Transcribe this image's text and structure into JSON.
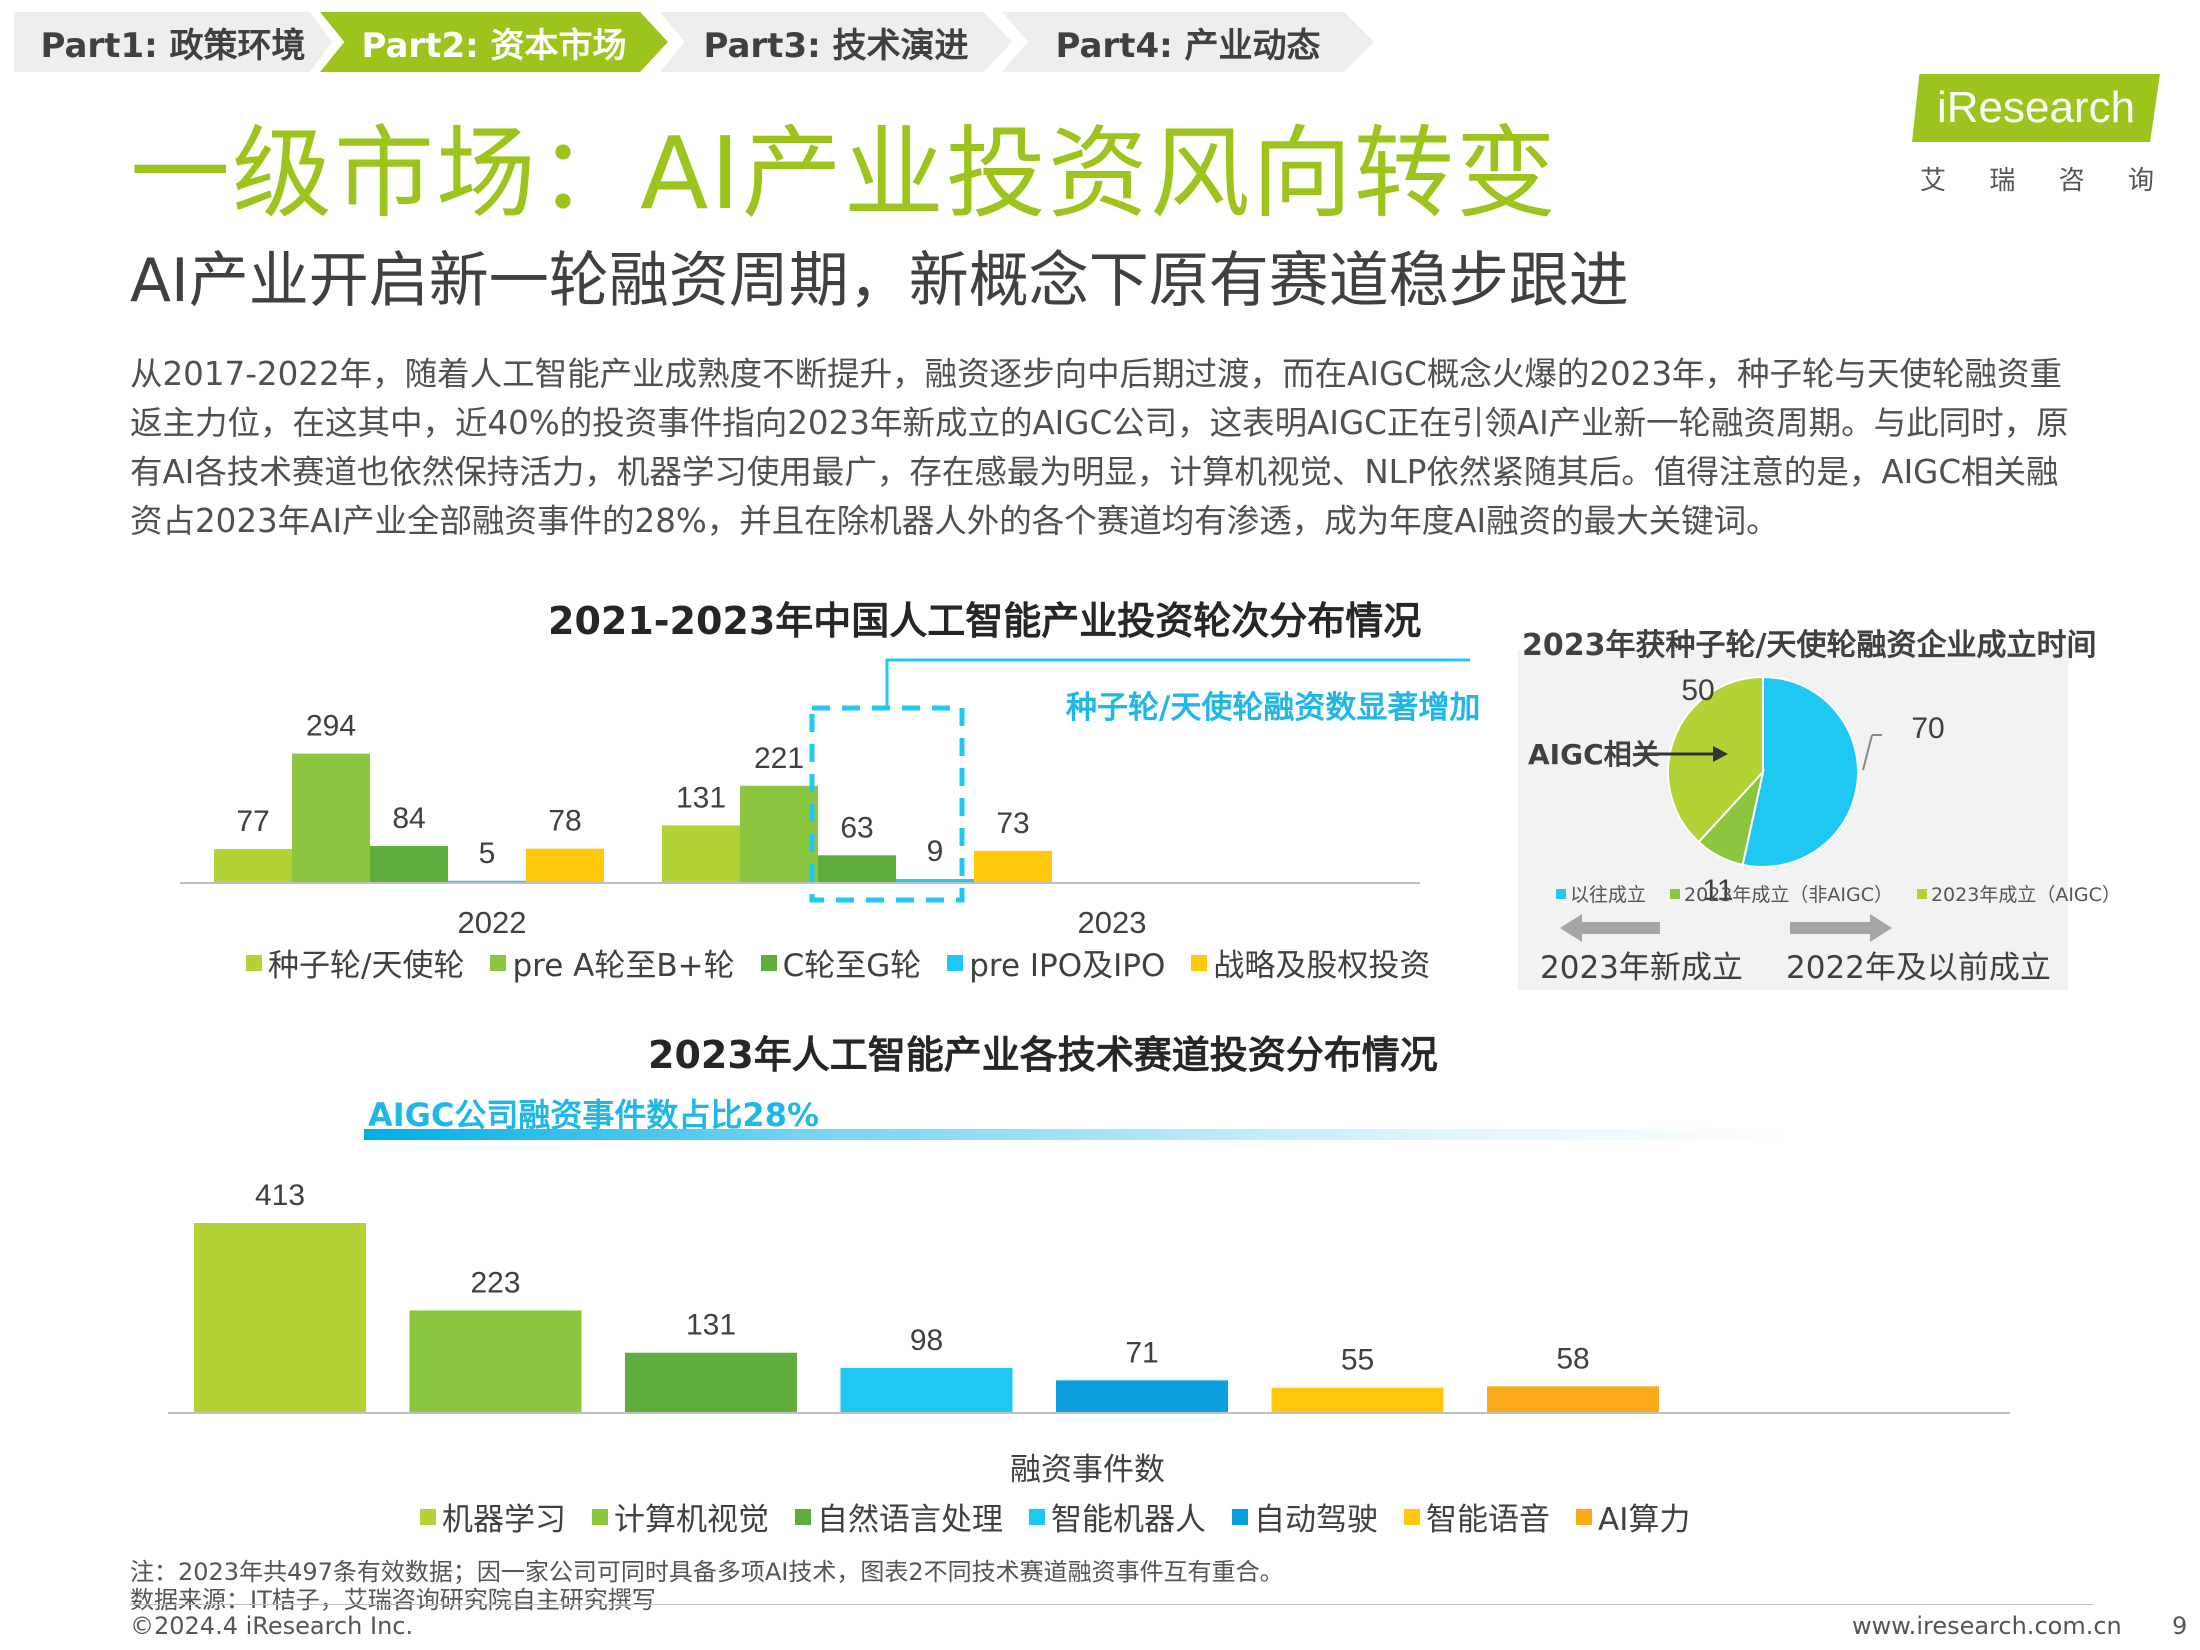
{
  "nav": {
    "tabs": [
      {
        "label": "Part1: 政策环境"
      },
      {
        "label": "Part2: 资本市场"
      },
      {
        "label": "Part3: 技术演进"
      },
      {
        "label": "Part4: 产业动态"
      }
    ],
    "active_index": 1
  },
  "logo": {
    "brand": "iResearch",
    "chinese": [
      "艾",
      "瑞",
      "咨",
      "询"
    ]
  },
  "header": {
    "title": "一级市场：AI产业投资风向转变",
    "subtitle": "AI产业开启新一轮融资周期，新概念下原有赛道稳步跟进"
  },
  "paragraph": "从2017-2022年，随着人工智能产业成熟度不断提升，融资逐步向中后期过渡，而在AIGC概念火爆的2023年，种子轮与天使轮融资重返主力位，在这其中，近40%的投资事件指向2023年新成立的AIGC公司，这表明AIGC正在引领AI产业新一轮融资周期。与此同时，原有AI各技术赛道也依然保持活力，机器学习使用最广，存在感最为明显，计算机视觉、NLP依然紧随其后。值得注意的是，AIGC相关融资占2023年AI产业全部融资事件的28%，并且在除机器人外的各个赛道均有渗透，成为年度AI融资的最大关键词。",
  "colors": {
    "lightgreen": "#b2d235",
    "green": "#8cc63f",
    "darkgreen": "#5fad3c",
    "cyan": "#1fc8f2",
    "blue": "#0a9fdc",
    "yellow": "#ffc80a",
    "orange": "#fbaa19",
    "brand": "#9dc41c"
  },
  "chart_data": [
    {
      "type": "bar",
      "title": "2021-2023年中国人工智能产业投资轮次分布情况",
      "categories": [
        "2022",
        "2023"
      ],
      "series": [
        {
          "name": "种子轮/天使轮",
          "color": "#b2d235",
          "values": [
            77,
            131
          ]
        },
        {
          "name": "pre A轮至B+轮",
          "color": "#8cc63f",
          "values": [
            294,
            221
          ]
        },
        {
          "name": "C轮至G轮",
          "color": "#5fad3c",
          "values": [
            84,
            63
          ]
        },
        {
          "name": "pre IPO及IPO",
          "color": "#1fc8f2",
          "values": [
            5,
            9
          ]
        },
        {
          "name": "战略及股权投资",
          "color": "#ffc80a",
          "values": [
            78,
            73
          ]
        }
      ],
      "annotation": "种子轮/天使轮融资数显著增加",
      "legend": "bottom"
    },
    {
      "type": "pie",
      "title": "2023年获种子轮/天使轮融资企业成立时间",
      "slices": [
        {
          "name": "以往成立",
          "value": 70,
          "color": "#1fc8f2"
        },
        {
          "name": "2023年成立（非AIGC）",
          "value": 11,
          "color": "#8cc63f"
        },
        {
          "name": "2023年成立（AIGC）",
          "value": 50,
          "color": "#b2d235"
        }
      ],
      "callout": "AIGC相关",
      "arrow_left_label": "2023年新成立",
      "arrow_right_label": "2022年及以前成立",
      "legend": "bottom"
    },
    {
      "type": "bar",
      "title": "2023年人工智能产业各技术赛道投资分布情况",
      "xlabel": "融资事件数",
      "banner": "AIGC公司融资事件数占比28%",
      "categories": [
        "机器学习",
        "计算机视觉",
        "自然语言处理",
        "智能机器人",
        "自动驾驶",
        "智能语音",
        "AI算力"
      ],
      "values": [
        413,
        223,
        131,
        98,
        71,
        55,
        58
      ],
      "colors": [
        "#b2d235",
        "#8cc63f",
        "#5fad3c",
        "#1fc8f2",
        "#0a9fdc",
        "#ffc80a",
        "#fbaa19"
      ],
      "legend": "bottom"
    }
  ],
  "notes": {
    "note": "注：2023年共497条有效数据；因一家公司可同时具备多项AI技术，图表2不同技术赛道融资事件互有重合。",
    "source": "数据来源：IT桔子，艾瑞咨询研究院自主研究撰写"
  },
  "footer": {
    "copyright": "©2024.4 iResearch Inc.",
    "url": "www.iresearch.com.cn",
    "page": "9"
  }
}
